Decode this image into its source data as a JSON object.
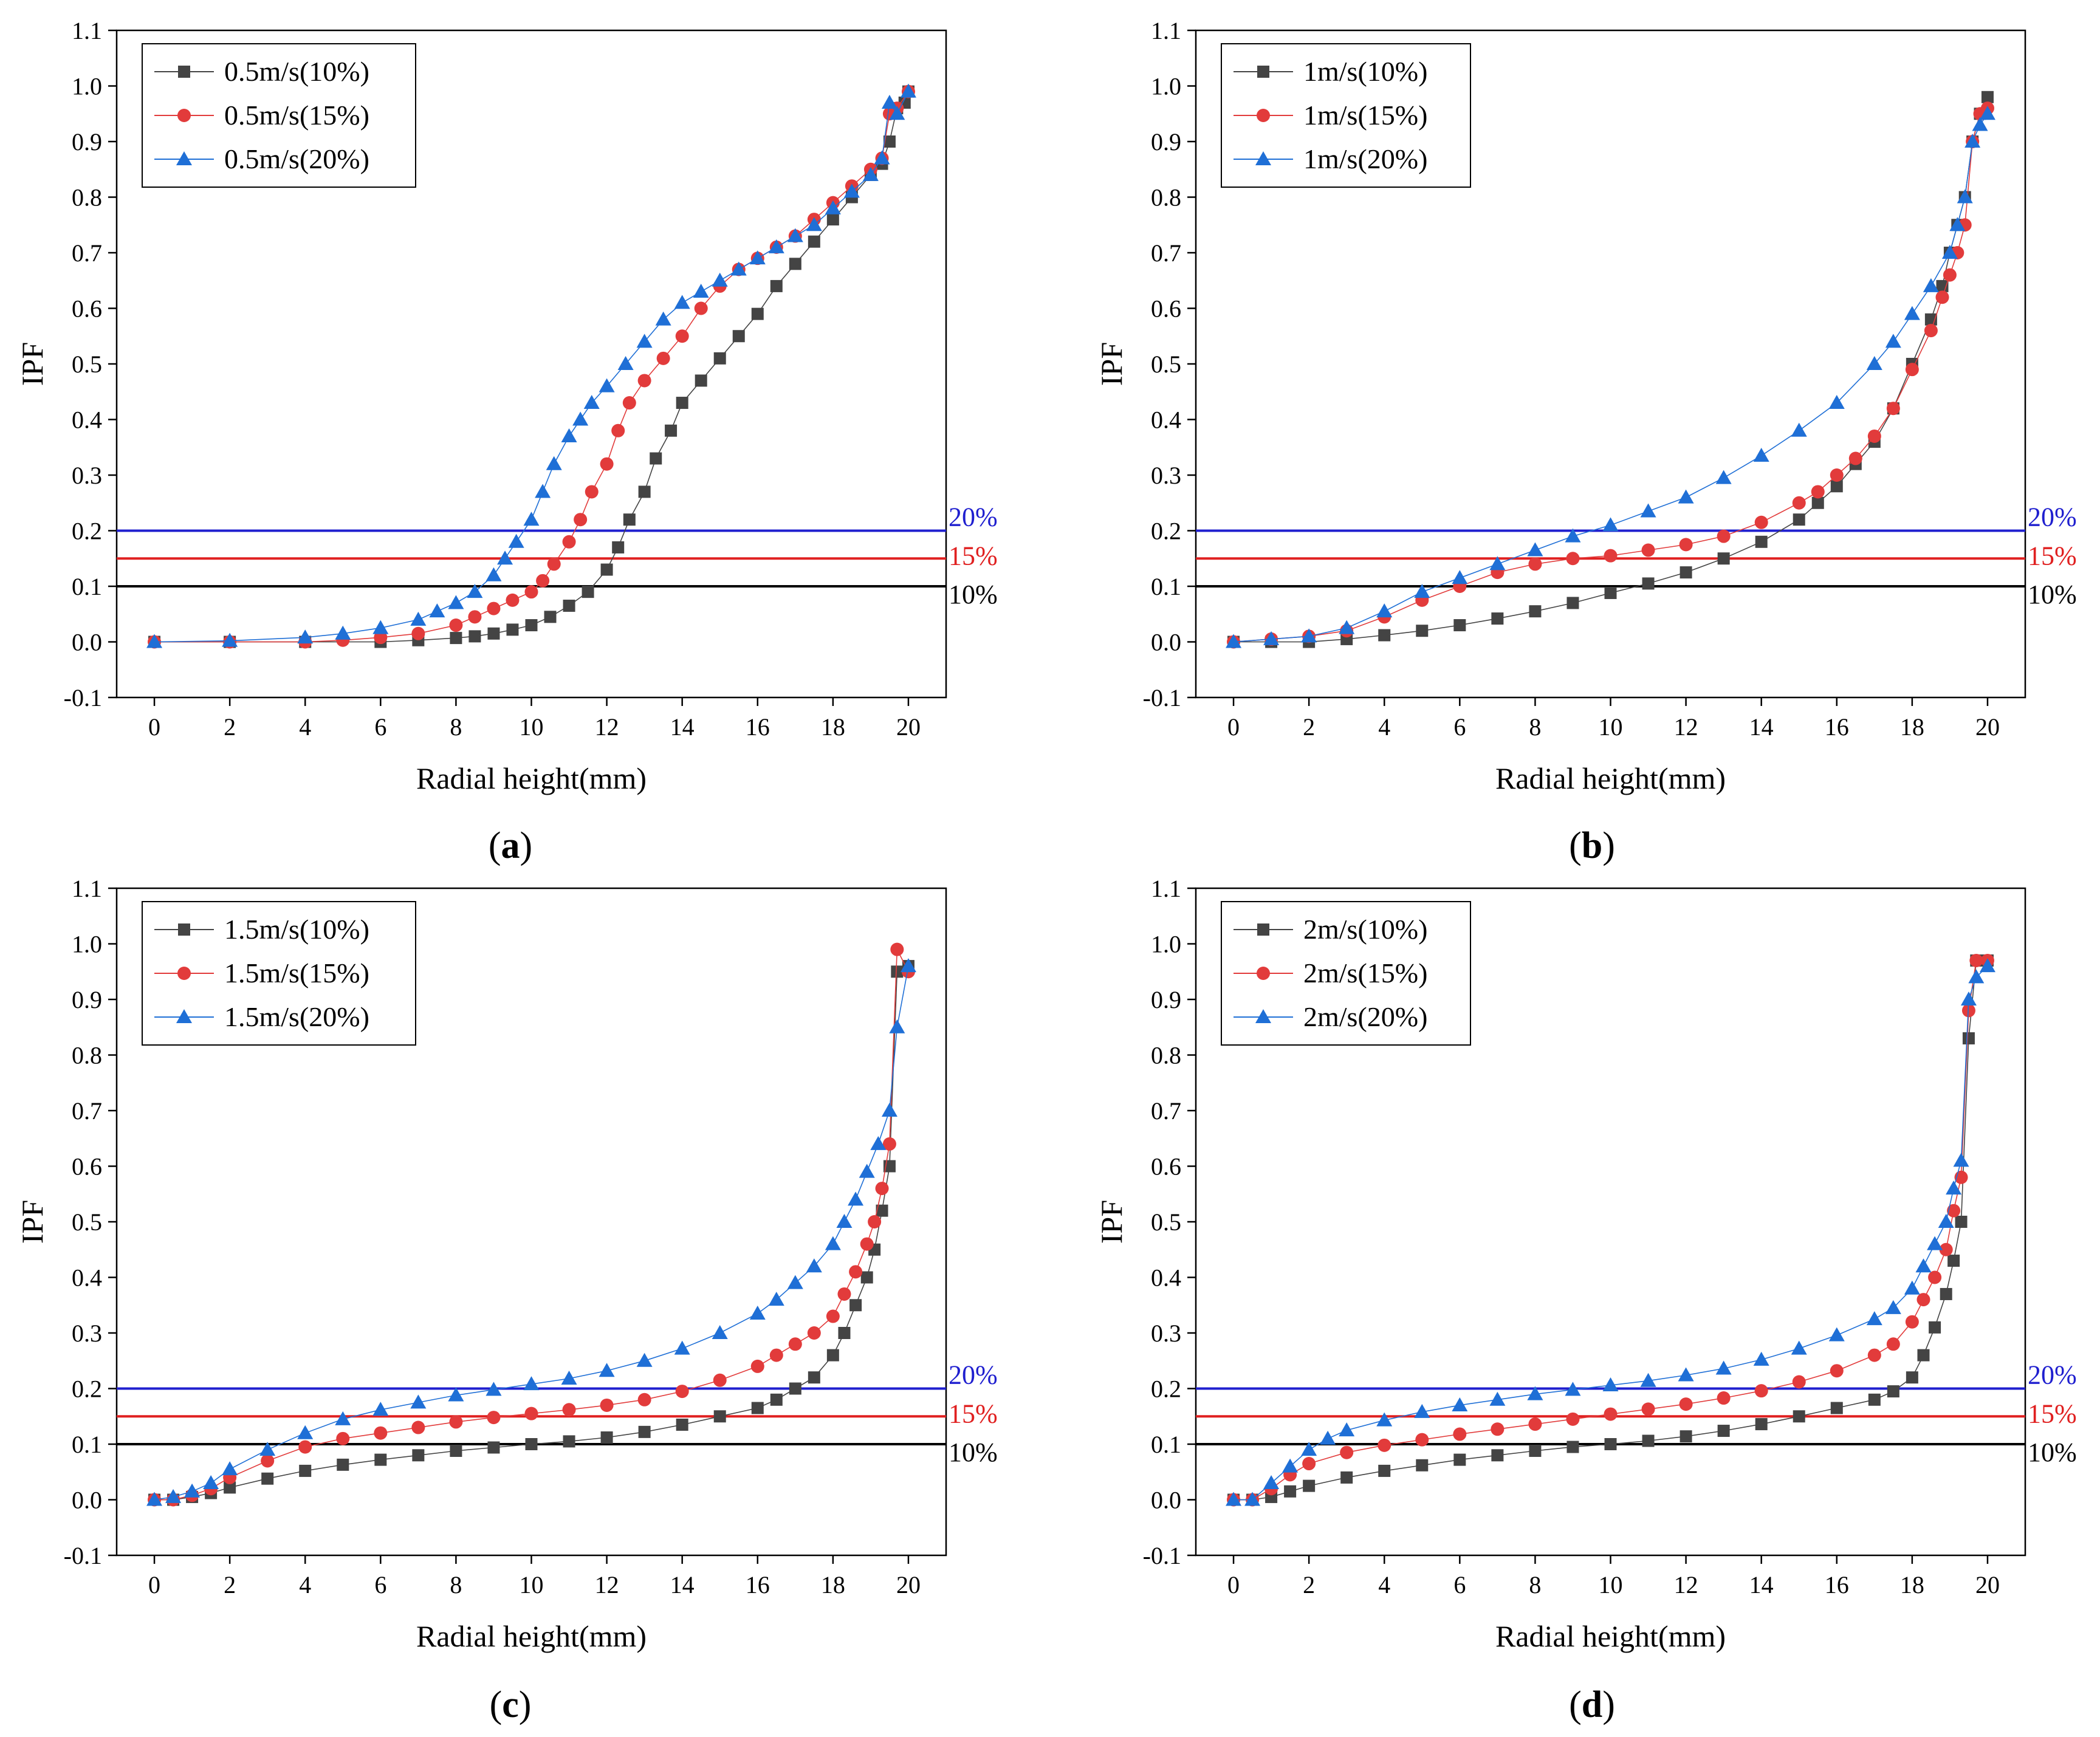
{
  "chart_data": [
    {
      "type": "scatter",
      "panel": "(a)",
      "panel_letter": "a",
      "xlabel": "Radial height(mm)",
      "ylabel": "IPF",
      "xlim": [
        -1,
        21
      ],
      "ylim": [
        -0.1,
        1.1
      ],
      "xticks": [
        0,
        2,
        4,
        6,
        8,
        10,
        12,
        14,
        16,
        18,
        20
      ],
      "yticks": [
        "-0.1",
        "0.0",
        "0.1",
        "0.2",
        "0.3",
        "0.4",
        "0.5",
        "0.6",
        "0.7",
        "0.8",
        "0.9",
        "1.0",
        "1.1"
      ],
      "legend_position": "top-left",
      "reference_lines": [
        {
          "label": "20%",
          "y": 0.2,
          "color": "#1f1fcf"
        },
        {
          "label": "15%",
          "y": 0.15,
          "color": "#e02020"
        },
        {
          "label": "10%",
          "y": 0.1,
          "color": "#000000"
        }
      ],
      "series": [
        {
          "name": "0.5m/s(10%)",
          "marker": "square",
          "color": "#444444",
          "x": [
            0,
            2,
            4,
            6,
            7,
            8,
            8.5,
            9,
            9.5,
            10,
            10.5,
            11,
            11.5,
            12,
            12.3,
            12.6,
            13,
            13.3,
            13.7,
            14,
            14.5,
            15,
            15.5,
            16,
            16.5,
            17,
            17.5,
            18,
            18.5,
            19,
            19.3,
            19.5,
            19.7,
            19.9,
            20
          ],
          "y": [
            0,
            0,
            0,
            0,
            0.003,
            0.007,
            0.01,
            0.015,
            0.022,
            0.03,
            0.045,
            0.065,
            0.09,
            0.13,
            0.17,
            0.22,
            0.27,
            0.33,
            0.38,
            0.43,
            0.47,
            0.51,
            0.55,
            0.59,
            0.64,
            0.68,
            0.72,
            0.76,
            0.8,
            0.84,
            0.86,
            0.9,
            0.96,
            0.97,
            0.99
          ]
        },
        {
          "name": "0.5m/s(15%)",
          "marker": "circle",
          "color": "#e23b3b",
          "x": [
            0,
            2,
            4,
            5,
            6,
            7,
            8,
            8.5,
            9,
            9.5,
            10,
            10.3,
            10.6,
            11,
            11.3,
            11.6,
            12,
            12.3,
            12.6,
            13,
            13.5,
            14,
            14.5,
            15,
            15.5,
            16,
            16.5,
            17,
            17.5,
            18,
            18.5,
            19,
            19.3,
            19.5,
            19.7,
            20
          ],
          "y": [
            0,
            0,
            0,
            0.003,
            0.008,
            0.015,
            0.03,
            0.045,
            0.06,
            0.075,
            0.09,
            0.11,
            0.14,
            0.18,
            0.22,
            0.27,
            0.32,
            0.38,
            0.43,
            0.47,
            0.51,
            0.55,
            0.6,
            0.64,
            0.67,
            0.69,
            0.71,
            0.73,
            0.76,
            0.79,
            0.82,
            0.85,
            0.87,
            0.95,
            0.96,
            0.99
          ]
        },
        {
          "name": "0.5m/s(20%)",
          "marker": "triangle",
          "color": "#1f6fd6",
          "x": [
            0,
            2,
            4,
            5,
            6,
            7,
            7.5,
            8,
            8.5,
            9,
            9.3,
            9.6,
            10,
            10.3,
            10.6,
            11,
            11.3,
            11.6,
            12,
            12.5,
            13,
            13.5,
            14,
            14.5,
            15,
            15.5,
            16,
            16.5,
            17,
            17.5,
            18,
            18.5,
            19,
            19.3,
            19.5,
            19.7,
            20
          ],
          "y": [
            0,
            0.002,
            0.008,
            0.015,
            0.025,
            0.04,
            0.055,
            0.07,
            0.09,
            0.12,
            0.15,
            0.18,
            0.22,
            0.27,
            0.32,
            0.37,
            0.4,
            0.43,
            0.46,
            0.5,
            0.54,
            0.58,
            0.61,
            0.63,
            0.65,
            0.67,
            0.69,
            0.71,
            0.73,
            0.75,
            0.78,
            0.81,
            0.84,
            0.87,
            0.97,
            0.95,
            0.99
          ]
        }
      ]
    },
    {
      "type": "scatter",
      "panel": "(b)",
      "panel_letter": "b",
      "xlabel": "Radial height(mm)",
      "ylabel": "IPF",
      "xlim": [
        -1,
        21
      ],
      "ylim": [
        -0.1,
        1.1
      ],
      "xticks": [
        0,
        2,
        4,
        6,
        8,
        10,
        12,
        14,
        16,
        18,
        20
      ],
      "yticks": [
        "-0.1",
        "0.0",
        "0.1",
        "0.2",
        "0.3",
        "0.4",
        "0.5",
        "0.6",
        "0.7",
        "0.8",
        "0.9",
        "1.0",
        "1.1"
      ],
      "legend_position": "top-left",
      "reference_lines": [
        {
          "label": "20%",
          "y": 0.2,
          "color": "#1f1fcf"
        },
        {
          "label": "15%",
          "y": 0.15,
          "color": "#e02020"
        },
        {
          "label": "10%",
          "y": 0.1,
          "color": "#000000"
        }
      ],
      "series": [
        {
          "name": "1m/s(10%)",
          "marker": "square",
          "color": "#444444",
          "x": [
            0,
            1,
            2,
            3,
            4,
            5,
            6,
            7,
            8,
            9,
            10,
            11,
            12,
            13,
            14,
            15,
            15.5,
            16,
            16.5,
            17,
            17.5,
            18,
            18.5,
            18.8,
            19,
            19.2,
            19.4,
            19.6,
            19.8,
            20
          ],
          "y": [
            0,
            0,
            0,
            0.005,
            0.012,
            0.02,
            0.03,
            0.042,
            0.055,
            0.07,
            0.088,
            0.105,
            0.125,
            0.15,
            0.18,
            0.22,
            0.25,
            0.28,
            0.32,
            0.36,
            0.42,
            0.5,
            0.58,
            0.64,
            0.7,
            0.75,
            0.8,
            0.9,
            0.95,
            0.98
          ]
        },
        {
          "name": "1m/s(15%)",
          "marker": "circle",
          "color": "#e23b3b",
          "x": [
            0,
            1,
            2,
            3,
            4,
            5,
            6,
            7,
            8,
            9,
            10,
            11,
            12,
            13,
            14,
            15,
            15.5,
            16,
            16.5,
            17,
            17.5,
            18,
            18.5,
            18.8,
            19,
            19.2,
            19.4,
            19.6,
            19.8,
            20
          ],
          "y": [
            0,
            0.005,
            0.01,
            0.02,
            0.045,
            0.075,
            0.1,
            0.125,
            0.14,
            0.15,
            0.155,
            0.165,
            0.175,
            0.19,
            0.215,
            0.25,
            0.27,
            0.3,
            0.33,
            0.37,
            0.42,
            0.49,
            0.56,
            0.62,
            0.66,
            0.7,
            0.75,
            0.9,
            0.95,
            0.96
          ]
        },
        {
          "name": "1m/s(20%)",
          "marker": "triangle",
          "color": "#1f6fd6",
          "x": [
            0,
            1,
            2,
            3,
            4,
            5,
            6,
            7,
            8,
            9,
            10,
            11,
            12,
            13,
            14,
            15,
            16,
            17,
            17.5,
            18,
            18.5,
            19,
            19.2,
            19.4,
            19.6,
            19.8,
            20
          ],
          "y": [
            0,
            0.005,
            0.01,
            0.025,
            0.055,
            0.09,
            0.115,
            0.14,
            0.165,
            0.19,
            0.21,
            0.235,
            0.26,
            0.295,
            0.335,
            0.38,
            0.43,
            0.5,
            0.54,
            0.59,
            0.64,
            0.7,
            0.75,
            0.8,
            0.9,
            0.93,
            0.95
          ]
        }
      ]
    },
    {
      "type": "scatter",
      "panel": "(c)",
      "panel_letter": "c",
      "xlabel": "Radial height(mm)",
      "ylabel": "IPF",
      "xlim": [
        -1,
        21
      ],
      "ylim": [
        -0.1,
        1.1
      ],
      "xticks": [
        0,
        2,
        4,
        6,
        8,
        10,
        12,
        14,
        16,
        18,
        20
      ],
      "yticks": [
        "-0.1",
        "0.0",
        "0.1",
        "0.2",
        "0.3",
        "0.4",
        "0.5",
        "0.6",
        "0.7",
        "0.8",
        "0.9",
        "1.0",
        "1.1"
      ],
      "legend_position": "top-left",
      "reference_lines": [
        {
          "label": "20%",
          "y": 0.2,
          "color": "#1f1fcf"
        },
        {
          "label": "15%",
          "y": 0.15,
          "color": "#e02020"
        },
        {
          "label": "10%",
          "y": 0.1,
          "color": "#000000"
        }
      ],
      "series": [
        {
          "name": "1.5m/s(10%)",
          "marker": "square",
          "color": "#444444",
          "x": [
            0,
            0.5,
            1,
            1.5,
            2,
            3,
            4,
            5,
            6,
            7,
            8,
            9,
            10,
            11,
            12,
            13,
            14,
            15,
            16,
            16.5,
            17,
            17.5,
            18,
            18.3,
            18.6,
            18.9,
            19.1,
            19.3,
            19.5,
            19.7,
            20
          ],
          "y": [
            0,
            0,
            0.005,
            0.012,
            0.022,
            0.038,
            0.052,
            0.063,
            0.072,
            0.08,
            0.088,
            0.094,
            0.1,
            0.105,
            0.112,
            0.122,
            0.135,
            0.15,
            0.165,
            0.18,
            0.2,
            0.22,
            0.26,
            0.3,
            0.35,
            0.4,
            0.45,
            0.52,
            0.6,
            0.95,
            0.96
          ]
        },
        {
          "name": "1.5m/s(15%)",
          "marker": "circle",
          "color": "#e23b3b",
          "x": [
            0,
            0.5,
            1,
            1.5,
            2,
            3,
            4,
            5,
            6,
            7,
            8,
            9,
            10,
            11,
            12,
            13,
            14,
            15,
            16,
            16.5,
            17,
            17.5,
            18,
            18.3,
            18.6,
            18.9,
            19.1,
            19.3,
            19.5,
            19.7,
            20
          ],
          "y": [
            0,
            0,
            0.008,
            0.02,
            0.04,
            0.07,
            0.095,
            0.11,
            0.12,
            0.13,
            0.14,
            0.148,
            0.155,
            0.162,
            0.17,
            0.18,
            0.195,
            0.215,
            0.24,
            0.26,
            0.28,
            0.3,
            0.33,
            0.37,
            0.41,
            0.46,
            0.5,
            0.56,
            0.64,
            0.99,
            0.95
          ]
        },
        {
          "name": "1.5m/s(20%)",
          "marker": "triangle",
          "color": "#1f6fd6",
          "x": [
            0,
            0.5,
            1,
            1.5,
            2,
            3,
            4,
            5,
            6,
            7,
            8,
            9,
            10,
            11,
            12,
            13,
            14,
            15,
            16,
            16.5,
            17,
            17.5,
            18,
            18.3,
            18.6,
            18.9,
            19.2,
            19.5,
            19.7,
            20
          ],
          "y": [
            0,
            0.005,
            0.015,
            0.03,
            0.055,
            0.09,
            0.12,
            0.145,
            0.162,
            0.175,
            0.188,
            0.198,
            0.208,
            0.218,
            0.232,
            0.25,
            0.272,
            0.3,
            0.335,
            0.36,
            0.39,
            0.42,
            0.46,
            0.5,
            0.54,
            0.59,
            0.64,
            0.7,
            0.85,
            0.96
          ]
        }
      ]
    },
    {
      "type": "scatter",
      "panel": "(d)",
      "panel_letter": "d",
      "xlabel": "Radial height(mm)",
      "ylabel": "IPF",
      "xlim": [
        -1,
        21
      ],
      "ylim": [
        -0.1,
        1.1
      ],
      "xticks": [
        0,
        2,
        4,
        6,
        8,
        10,
        12,
        14,
        16,
        18,
        20
      ],
      "yticks": [
        "-0.1",
        "0.0",
        "0.1",
        "0.2",
        "0.3",
        "0.4",
        "0.5",
        "0.6",
        "0.7",
        "0.8",
        "0.9",
        "1.0",
        "1.1"
      ],
      "legend_position": "top-left",
      "reference_lines": [
        {
          "label": "20%",
          "y": 0.2,
          "color": "#1f1fcf"
        },
        {
          "label": "15%",
          "y": 0.15,
          "color": "#e02020"
        },
        {
          "label": "10%",
          "y": 0.1,
          "color": "#000000"
        }
      ],
      "series": [
        {
          "name": "2m/s(10%)",
          "marker": "square",
          "color": "#444444",
          "x": [
            0,
            0.5,
            1,
            1.5,
            2,
            3,
            4,
            5,
            6,
            7,
            8,
            9,
            10,
            11,
            12,
            13,
            14,
            15,
            16,
            17,
            17.5,
            18,
            18.3,
            18.6,
            18.9,
            19.1,
            19.3,
            19.5,
            19.7,
            20
          ],
          "y": [
            0,
            0,
            0.005,
            0.015,
            0.025,
            0.04,
            0.052,
            0.062,
            0.072,
            0.08,
            0.088,
            0.095,
            0.1,
            0.106,
            0.114,
            0.124,
            0.136,
            0.15,
            0.165,
            0.18,
            0.195,
            0.22,
            0.26,
            0.31,
            0.37,
            0.43,
            0.5,
            0.83,
            0.97,
            0.97
          ]
        },
        {
          "name": "2m/s(15%)",
          "marker": "circle",
          "color": "#e23b3b",
          "x": [
            0,
            0.5,
            1,
            1.5,
            2,
            3,
            4,
            5,
            6,
            7,
            8,
            9,
            10,
            11,
            12,
            13,
            14,
            15,
            16,
            17,
            17.5,
            18,
            18.3,
            18.6,
            18.9,
            19.1,
            19.3,
            19.5,
            19.7,
            20
          ],
          "y": [
            0,
            0,
            0.02,
            0.045,
            0.065,
            0.085,
            0.098,
            0.108,
            0.118,
            0.127,
            0.136,
            0.145,
            0.154,
            0.163,
            0.172,
            0.183,
            0.196,
            0.212,
            0.232,
            0.26,
            0.28,
            0.32,
            0.36,
            0.4,
            0.45,
            0.52,
            0.58,
            0.88,
            0.97,
            0.97
          ]
        },
        {
          "name": "2m/s(20%)",
          "marker": "triangle",
          "color": "#1f6fd6",
          "x": [
            0,
            0.5,
            1,
            1.5,
            2,
            2.5,
            3,
            4,
            5,
            6,
            7,
            8,
            9,
            10,
            11,
            12,
            13,
            14,
            15,
            16,
            17,
            17.5,
            18,
            18.3,
            18.6,
            18.9,
            19.1,
            19.3,
            19.5,
            19.7,
            20
          ],
          "y": [
            0,
            0,
            0.03,
            0.06,
            0.09,
            0.11,
            0.125,
            0.143,
            0.158,
            0.17,
            0.18,
            0.19,
            0.198,
            0.206,
            0.214,
            0.224,
            0.236,
            0.252,
            0.272,
            0.296,
            0.325,
            0.345,
            0.38,
            0.42,
            0.46,
            0.5,
            0.56,
            0.61,
            0.9,
            0.94,
            0.96
          ]
        }
      ]
    }
  ]
}
